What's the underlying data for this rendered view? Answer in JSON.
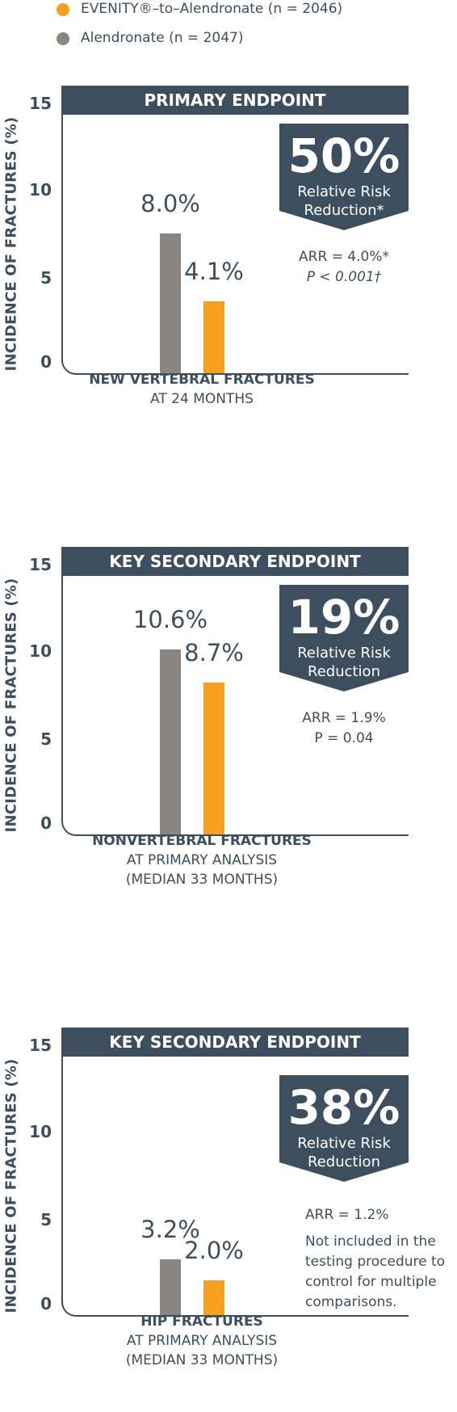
{
  "legend": [
    {
      "label": "EVENITY®–to–Alendronate (n = 2046)",
      "color": "#f5a020"
    },
    {
      "label": "Alendronate (n = 2047)",
      "color": "#8a8580"
    }
  ],
  "colors": {
    "header": "#3d4f5e",
    "alendronate": "#8a8580",
    "evenity": "#f5a020"
  },
  "chart_data": [
    {
      "type": "bar",
      "title": "PRIMARY ENDPOINT",
      "ylabel": "INCIDENCE OF FRACTURES (%)",
      "yticks": [
        "0",
        "5",
        "10",
        "15"
      ],
      "ylim": [
        0,
        15
      ],
      "categories": [
        "NEW VERTEBRAL FRACTURES"
      ],
      "category_sub": [
        "AT 24 MONTHS"
      ],
      "series": [
        {
          "name": "Alendronate (n = 2047)",
          "values": [
            8.0
          ],
          "label": "8.0%"
        },
        {
          "name": "EVENITY®–to–Alendronate (n = 2046)",
          "values": [
            4.1
          ],
          "label": "4.1%"
        }
      ],
      "callout": {
        "pct": "50%",
        "line1": "Relative Risk",
        "line2": "Reduction*"
      },
      "stats": [
        "ARR = 4.0%*",
        "P < 0.001†"
      ]
    },
    {
      "type": "bar",
      "title": "KEY SECONDARY ENDPOINT",
      "ylabel": "INCIDENCE OF FRACTURES (%)",
      "yticks": [
        "0",
        "5",
        "10",
        "15"
      ],
      "ylim": [
        0,
        15
      ],
      "categories": [
        "NONVERTEBRAL FRACTURES"
      ],
      "category_sub": [
        "AT PRIMARY ANALYSIS",
        "(MEDIAN 33 MONTHS)"
      ],
      "series": [
        {
          "name": "Alendronate (n = 2047)",
          "values": [
            10.6
          ],
          "label": "10.6%"
        },
        {
          "name": "EVENITY®–to–Alendronate (n = 2046)",
          "values": [
            8.7
          ],
          "label": "8.7%"
        }
      ],
      "callout": {
        "pct": "19%",
        "line1": "Relative Risk",
        "line2": "Reduction"
      },
      "stats": [
        "ARR = 1.9%",
        "P = 0.04"
      ]
    },
    {
      "type": "bar",
      "title": "KEY SECONDARY ENDPOINT",
      "ylabel": "INCIDENCE OF FRACTURES (%)",
      "yticks": [
        "0",
        "5",
        "10",
        "15"
      ],
      "ylim": [
        0,
        15
      ],
      "categories": [
        "HIP FRACTURES"
      ],
      "category_sub": [
        "AT PRIMARY ANALYSIS",
        "(MEDIAN 33 MONTHS)"
      ],
      "series": [
        {
          "name": "Alendronate (n = 2047)",
          "values": [
            3.2
          ],
          "label": "3.2%"
        },
        {
          "name": "EVENITY®–to–Alendronate (n = 2046)",
          "values": [
            2.0
          ],
          "label": "2.0%"
        }
      ],
      "callout": {
        "pct": "38%",
        "line1": "Relative Risk",
        "line2": "Reduction"
      },
      "stats": [
        "ARR = 1.2%",
        "Not included in the",
        "testing procedure to",
        "control for multiple",
        "comparisons."
      ]
    }
  ]
}
